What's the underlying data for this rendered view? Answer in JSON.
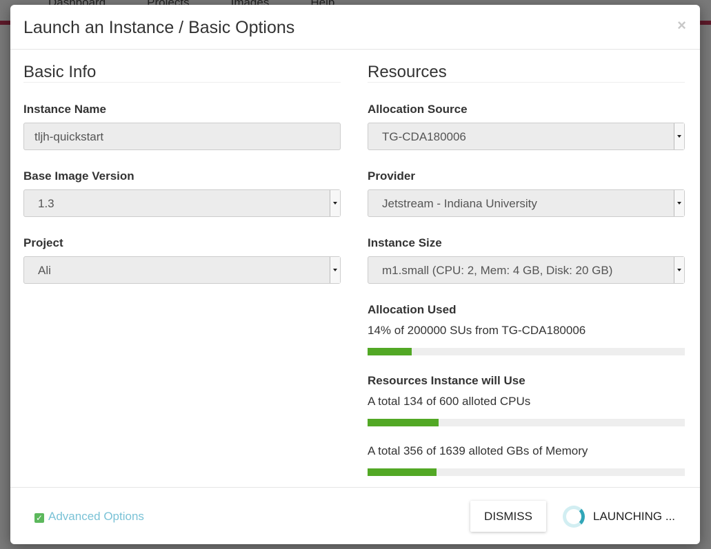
{
  "background_nav": [
    "Dashboard",
    "Projects",
    "Images",
    "Help"
  ],
  "modal": {
    "title": "Launch an Instance / Basic Options",
    "close_label": "×",
    "basic_info": {
      "heading": "Basic Info",
      "instance_name_label": "Instance Name",
      "instance_name_value": "tljh-quickstart",
      "base_image_label": "Base Image Version",
      "base_image_value": "1.3",
      "project_label": "Project",
      "project_value": "Ali"
    },
    "resources": {
      "heading": "Resources",
      "allocation_source_label": "Allocation Source",
      "allocation_source_value": "TG-CDA180006",
      "provider_label": "Provider",
      "provider_value": "Jetstream - Indiana University",
      "instance_size_label": "Instance Size",
      "instance_size_value": "m1.small (CPU: 2, Mem: 4 GB, Disk: 20 GB)",
      "allocation_used_label": "Allocation Used",
      "allocation_used_text": "14% of 200000 SUs from TG-CDA180006",
      "allocation_used_percent": 14,
      "resources_label": "Resources Instance will Use",
      "cpu_text": "A total 134 of 600 alloted CPUs",
      "cpu_percent": 22.3,
      "memory_text": "A total 356 of 1639 alloted GBs of Memory",
      "memory_percent": 21.7
    },
    "footer": {
      "advanced_options": "Advanced Options",
      "dismiss": "DISMISS",
      "launching": "LAUNCHING ..."
    }
  },
  "colors": {
    "progress": "#52a825",
    "link": "#7ac2d6",
    "spinner": "#31a6b8"
  }
}
